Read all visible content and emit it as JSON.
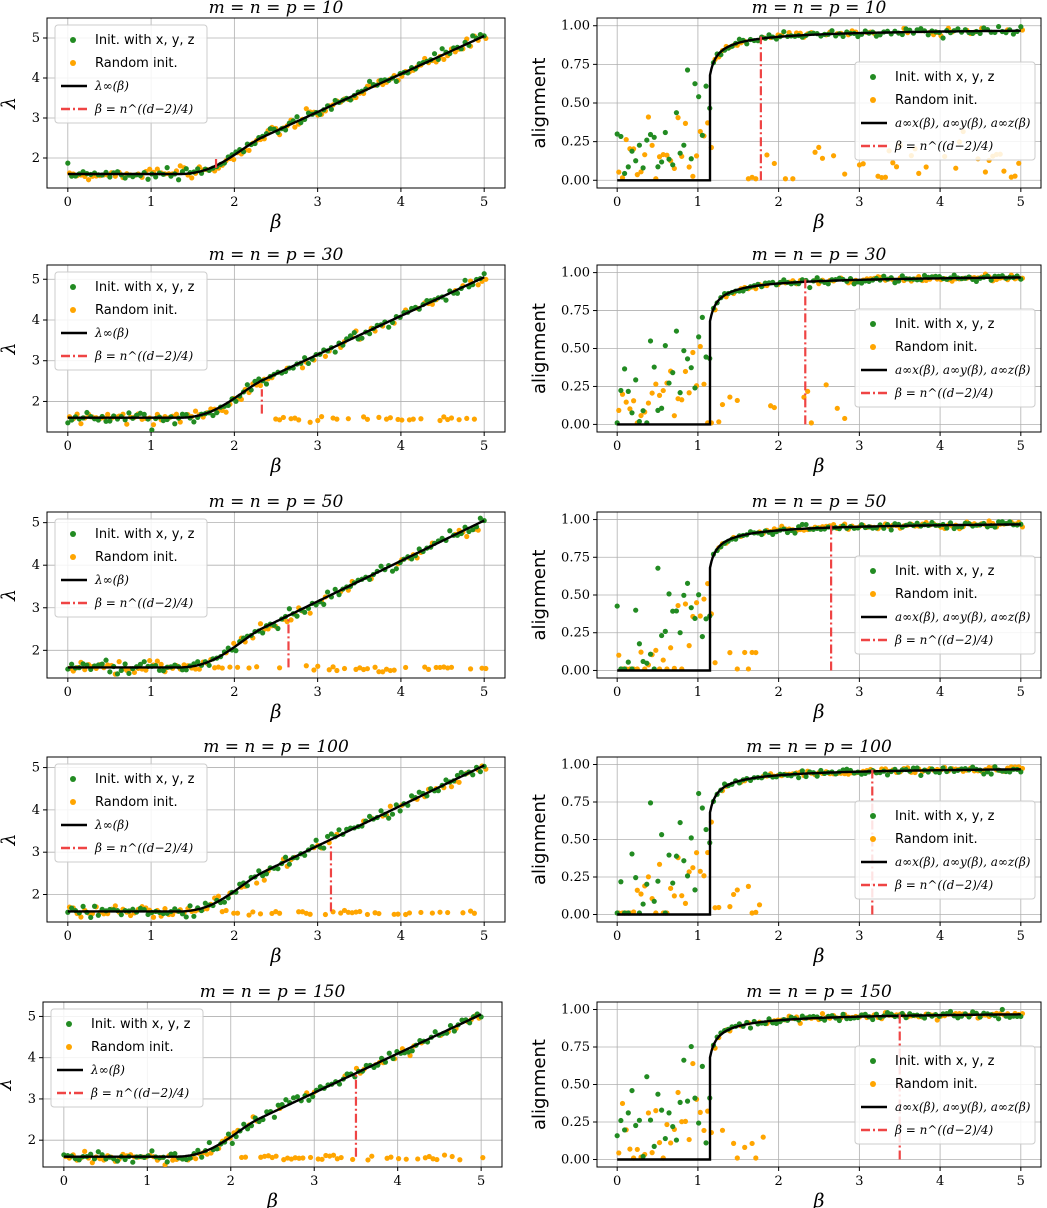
{
  "colors": {
    "informed": "#228b22",
    "random": "#ffa500",
    "theory": "#000000",
    "threshold": "#ef4444",
    "grid": "#b0b0b0"
  },
  "legend": {
    "informed": "Init. with x, y, z",
    "random": "Random init.",
    "lambda_theory": "λ∞(β)",
    "alignment_theory": "a∞x(β), a∞y(β), a∞z(β)",
    "threshold": "β = n^((d−2)/4)"
  },
  "chart_data": [
    {
      "type": "scatter",
      "title": "m = n = p = 10",
      "xlabel": "β",
      "ylabel": "λ",
      "xlim": [
        -0.25,
        5.25
      ],
      "ylim": [
        1.25,
        5.5
      ],
      "xticks": [
        0,
        1,
        2,
        3,
        4,
        5
      ],
      "yticks": [
        2,
        3,
        4,
        5
      ],
      "threshold_x": 1.78,
      "threshold_y_range": [
        1.75,
        2.05
      ],
      "legend_position": "upper-left",
      "grid": true,
      "series": [
        {
          "name": "Init. with x, y, z",
          "curve": "informed-lambda",
          "x_range": [
            0,
            5
          ]
        },
        {
          "name": "Random init.",
          "curve": "random-lambda",
          "x_range": [
            0,
            5
          ],
          "note": "follows theory for most β"
        },
        {
          "name": "λ∞(β)",
          "values_x": [
            0,
            1.15,
            2,
            3,
            4,
            5
          ],
          "values_y": [
            1.6,
            1.6,
            2.15,
            3.1,
            4.05,
            5.05
          ]
        }
      ]
    },
    {
      "type": "scatter",
      "title": "m = n = p = 10",
      "xlabel": "β",
      "ylabel": "alignment",
      "xlim": [
        -0.25,
        5.25
      ],
      "ylim": [
        -0.05,
        1.05
      ],
      "xticks": [
        0,
        1,
        2,
        3,
        4,
        5
      ],
      "yticks": [
        0.0,
        0.25,
        0.5,
        0.75,
        1.0
      ],
      "threshold_x": 1.78,
      "threshold_y_range": [
        0,
        0.93
      ],
      "legend_position": "center-right",
      "grid": true,
      "series": [
        {
          "name": "Init. with x, y, z"
        },
        {
          "name": "Random init."
        },
        {
          "name": "a∞x(β), a∞y(β), a∞z(β)",
          "jump_at": 1.15
        }
      ]
    },
    {
      "type": "scatter",
      "title": "m = n = p = 30",
      "xlabel": "β",
      "ylabel": "λ",
      "xlim": [
        -0.25,
        5.25
      ],
      "ylim": [
        1.25,
        5.35
      ],
      "xticks": [
        0,
        1,
        2,
        3,
        4,
        5
      ],
      "yticks": [
        2,
        3,
        4,
        5
      ],
      "threshold_x": 2.33,
      "threshold_y_range": [
        1.7,
        2.3
      ],
      "legend_position": "upper-left",
      "grid": true
    },
    {
      "type": "scatter",
      "title": "m = n = p = 30",
      "xlabel": "β",
      "ylabel": "alignment",
      "xlim": [
        -0.25,
        5.25
      ],
      "ylim": [
        -0.05,
        1.05
      ],
      "xticks": [
        0,
        1,
        2,
        3,
        4,
        5
      ],
      "yticks": [
        0.0,
        0.25,
        0.5,
        0.75,
        1.0
      ],
      "threshold_x": 2.33,
      "threshold_y_range": [
        0,
        0.97
      ],
      "legend_position": "center-right",
      "grid": true
    },
    {
      "type": "scatter",
      "title": "m = n = p = 50",
      "xlabel": "β",
      "ylabel": "λ",
      "xlim": [
        -0.25,
        5.25
      ],
      "ylim": [
        1.35,
        5.25
      ],
      "xticks": [
        0,
        1,
        2,
        3,
        4,
        5
      ],
      "yticks": [
        2,
        3,
        4,
        5
      ],
      "threshold_x": 2.65,
      "threshold_y_range": [
        1.6,
        2.75
      ],
      "legend_position": "upper-left",
      "grid": true
    },
    {
      "type": "scatter",
      "title": "m = n = p = 50",
      "xlabel": "β",
      "ylabel": "alignment",
      "xlim": [
        -0.25,
        5.25
      ],
      "ylim": [
        -0.05,
        1.05
      ],
      "xticks": [
        0,
        1,
        2,
        3,
        4,
        5
      ],
      "yticks": [
        0.0,
        0.25,
        0.5,
        0.75,
        1.0
      ],
      "threshold_x": 2.65,
      "threshold_y_range": [
        0,
        0.97
      ],
      "legend_position": "center-right",
      "grid": true
    },
    {
      "type": "scatter",
      "title": "m = n = p = 100",
      "xlabel": "β",
      "ylabel": "λ",
      "xlim": [
        -0.25,
        5.25
      ],
      "ylim": [
        1.35,
        5.25
      ],
      "xticks": [
        0,
        1,
        2,
        3,
        4,
        5
      ],
      "yticks": [
        2,
        3,
        4,
        5
      ],
      "threshold_x": 3.16,
      "threshold_y_range": [
        1.6,
        3.2
      ],
      "legend_position": "upper-left",
      "grid": true
    },
    {
      "type": "scatter",
      "title": "m = n = p = 100",
      "xlabel": "β",
      "ylabel": "alignment",
      "xlim": [
        -0.25,
        5.25
      ],
      "ylim": [
        -0.05,
        1.05
      ],
      "xticks": [
        0,
        1,
        2,
        3,
        4,
        5
      ],
      "yticks": [
        0.0,
        0.25,
        0.5,
        0.75,
        1.0
      ],
      "threshold_x": 3.16,
      "threshold_y_range": [
        0,
        0.98
      ],
      "legend_position": "center-right",
      "grid": true
    },
    {
      "type": "scatter",
      "title": "m = n = p = 150",
      "xlabel": "β",
      "ylabel": "λ",
      "xlim": [
        -0.25,
        5.25
      ],
      "ylim": [
        1.35,
        5.35
      ],
      "xticks": [
        0,
        1,
        2,
        3,
        4,
        5
      ],
      "yticks": [
        2,
        3,
        4,
        5
      ],
      "threshold_x": 3.5,
      "threshold_y_range": [
        1.6,
        3.6
      ],
      "legend_position": "upper-left",
      "grid": true
    },
    {
      "type": "scatter",
      "title": "m = n = p = 150",
      "xlabel": "β",
      "ylabel": "alignment",
      "xlim": [
        -0.25,
        5.25
      ],
      "ylim": [
        -0.05,
        1.05
      ],
      "xticks": [
        0,
        1,
        2,
        3,
        4,
        5
      ],
      "yticks": [
        0.0,
        0.25,
        0.5,
        0.75,
        1.0
      ],
      "threshold_x": 3.5,
      "threshold_y_range": [
        0,
        0.98
      ],
      "legend_position": "center-right",
      "grid": true
    }
  ]
}
